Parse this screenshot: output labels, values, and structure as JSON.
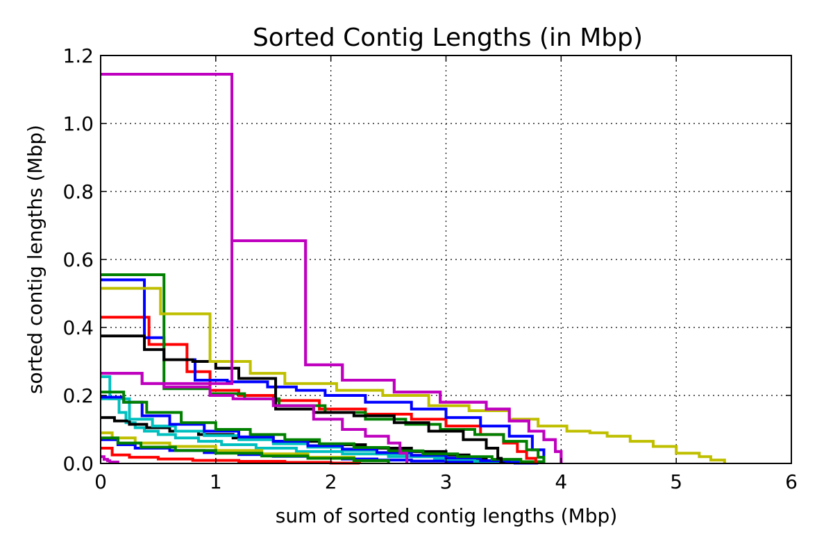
{
  "chart_data": {
    "type": "line",
    "title": "Sorted Contig Lengths (in Mbp)",
    "xlabel": "sum of sorted contig lengths (Mbp)",
    "ylabel": "sorted contig lengths (Mbp)",
    "xlim": [
      0,
      6
    ],
    "ylim": [
      0,
      1.2
    ],
    "x_ticks": [
      0,
      1,
      2,
      3,
      4,
      5,
      6
    ],
    "y_ticks": [
      0.0,
      0.2,
      0.4,
      0.6,
      0.8,
      1.0,
      1.2
    ],
    "x_tick_labels": [
      "0",
      "1",
      "2",
      "3",
      "4",
      "5",
      "6"
    ],
    "y_tick_labels": [
      "0.0",
      "0.2",
      "0.4",
      "0.6",
      "0.8",
      "1.0",
      "1.2"
    ],
    "grid": true,
    "step": "post",
    "series": [
      {
        "color": "#00bfbf",
        "x": [
          0,
          0.08,
          0.16,
          0.22,
          0.3,
          0.38,
          0.5,
          0.65,
          0.85,
          1.05,
          1.35,
          1.7,
          2.1,
          2.5,
          2.9,
          3.25,
          3.5,
          3.8
        ],
        "y": [
          0.255,
          0.19,
          0.15,
          0.12,
          0.105,
          0.095,
          0.085,
          0.075,
          0.065,
          0.055,
          0.045,
          0.035,
          0.028,
          0.02,
          0.014,
          0.008,
          0.004,
          0.0
        ]
      },
      {
        "color": "#0000ff",
        "x": [
          0,
          0.15,
          0.3,
          0.6,
          0.9,
          1.2,
          1.5,
          1.8,
          2.1,
          2.4,
          2.7,
          3.0,
          3.3,
          3.6,
          3.8
        ],
        "y": [
          0.07,
          0.055,
          0.045,
          0.038,
          0.032,
          0.026,
          0.021,
          0.017,
          0.013,
          0.01,
          0.007,
          0.005,
          0.003,
          0.001,
          0.0
        ]
      },
      {
        "color": "#ff0000",
        "x": [
          0,
          0.1,
          0.25,
          0.5,
          0.8,
          1.2,
          1.6,
          2.0,
          2.25
        ],
        "y": [
          0.045,
          0.025,
          0.018,
          0.013,
          0.009,
          0.006,
          0.003,
          0.001,
          0.0
        ]
      },
      {
        "color": "#bfbf00",
        "x": [
          0,
          0.1,
          0.3,
          0.6,
          1.0,
          1.4,
          1.8,
          2.2,
          2.5
        ],
        "y": [
          0.09,
          0.075,
          0.06,
          0.05,
          0.038,
          0.028,
          0.018,
          0.008,
          0.0
        ]
      },
      {
        "color": "#008000",
        "x": [
          0,
          0.15,
          0.35,
          0.65,
          1.0,
          1.4,
          1.8,
          2.2,
          2.5
        ],
        "y": [
          0.075,
          0.06,
          0.048,
          0.038,
          0.03,
          0.022,
          0.015,
          0.008,
          0.0
        ]
      },
      {
        "color": "#bf00bf",
        "x": [
          0,
          0.03,
          0.06,
          0.08,
          0.15
        ],
        "y": [
          0.02,
          0.012,
          0.008,
          0.004,
          0.0
        ]
      },
      {
        "color": "#000000",
        "x": [
          0,
          0.12,
          0.25,
          0.4,
          0.6,
          0.85,
          1.15,
          1.5,
          1.9,
          2.3,
          2.7,
          3.0,
          3.2,
          3.35,
          3.45,
          3.5
        ],
        "y": [
          0.135,
          0.125,
          0.115,
          0.105,
          0.095,
          0.085,
          0.075,
          0.065,
          0.055,
          0.045,
          0.035,
          0.025,
          0.015,
          0.008,
          0.003,
          0.0
        ]
      },
      {
        "color": "#00bfbf",
        "x": [
          0,
          0.25,
          0.45,
          0.65,
          0.9,
          1.2,
          1.5,
          1.8,
          2.1,
          2.4,
          2.7,
          3.0,
          3.25,
          3.45
        ],
        "y": [
          0.19,
          0.13,
          0.11,
          0.095,
          0.082,
          0.07,
          0.058,
          0.048,
          0.038,
          0.028,
          0.02,
          0.012,
          0.005,
          0.0
        ]
      },
      {
        "color": "#0000ff",
        "x": [
          0,
          0.2,
          0.36,
          0.6,
          0.9,
          1.2,
          1.5,
          1.8,
          2.1,
          2.4,
          2.7,
          3.0,
          3.3,
          3.55,
          3.7
        ],
        "y": [
          0.195,
          0.18,
          0.14,
          0.115,
          0.095,
          0.078,
          0.065,
          0.052,
          0.042,
          0.032,
          0.024,
          0.016,
          0.008,
          0.003,
          0.0
        ]
      },
      {
        "color": "#008000",
        "x": [
          0,
          0.2,
          0.4,
          0.7,
          1.0,
          1.3,
          1.6,
          1.9,
          2.2,
          2.5,
          2.8,
          3.1,
          3.4,
          3.65,
          3.85
        ],
        "y": [
          0.21,
          0.18,
          0.15,
          0.12,
          0.1,
          0.085,
          0.07,
          0.058,
          0.047,
          0.037,
          0.028,
          0.02,
          0.012,
          0.005,
          0.0
        ]
      },
      {
        "color": "#ff0000",
        "x": [
          0,
          0.42,
          0.75,
          0.95,
          1.2,
          1.5,
          1.9,
          2.3,
          2.7,
          3.0,
          3.3,
          3.5,
          3.62,
          3.7,
          3.78
        ],
        "y": [
          0.43,
          0.35,
          0.27,
          0.215,
          0.2,
          0.185,
          0.16,
          0.145,
          0.13,
          0.11,
          0.085,
          0.06,
          0.035,
          0.015,
          0.0
        ]
      },
      {
        "color": "#0000ff",
        "x": [
          0,
          0.38,
          0.55,
          0.82,
          1.1,
          1.45,
          1.7,
          1.95,
          2.3,
          2.7,
          3.0,
          3.3,
          3.55,
          3.75,
          3.85
        ],
        "y": [
          0.54,
          0.37,
          0.305,
          0.245,
          0.24,
          0.225,
          0.215,
          0.2,
          0.18,
          0.16,
          0.135,
          0.11,
          0.08,
          0.04,
          0.0
        ]
      },
      {
        "color": "#008000",
        "x": [
          0,
          0.55,
          0.95,
          1.25,
          1.55,
          1.95,
          2.3,
          2.65,
          2.95,
          3.25,
          3.5,
          3.7,
          3.8,
          3.85
        ],
        "y": [
          0.555,
          0.22,
          0.205,
          0.19,
          0.17,
          0.15,
          0.13,
          0.115,
          0.1,
          0.085,
          0.065,
          0.04,
          0.018,
          0.0
        ]
      },
      {
        "color": "#000000",
        "x": [
          0,
          0.38,
          0.55,
          0.8,
          1.0,
          1.2,
          1.52,
          1.85,
          2.2,
          2.55,
          2.85,
          3.15,
          3.35,
          3.45,
          3.48
        ],
        "y": [
          0.375,
          0.335,
          0.305,
          0.3,
          0.28,
          0.25,
          0.16,
          0.15,
          0.14,
          0.12,
          0.095,
          0.07,
          0.045,
          0.015,
          0.0
        ]
      },
      {
        "color": "#bfbf00",
        "x": [
          0,
          0.52,
          0.95,
          1.3,
          1.6,
          2.05,
          2.45,
          2.85,
          3.2,
          3.55,
          3.8,
          4.05,
          4.25,
          4.4,
          4.6,
          4.8,
          5.0,
          5.2,
          5.3,
          5.42
        ],
        "y": [
          0.515,
          0.44,
          0.3,
          0.265,
          0.235,
          0.215,
          0.2,
          0.17,
          0.155,
          0.13,
          0.11,
          0.095,
          0.09,
          0.08,
          0.065,
          0.05,
          0.03,
          0.02,
          0.01,
          0.0
        ]
      },
      {
        "color": "#bf00bf",
        "x": [
          0,
          0.36,
          1.14,
          1.78,
          2.1,
          2.55,
          2.95,
          3.35,
          3.55,
          3.72,
          3.85,
          3.95,
          4.0
        ],
        "y": [
          0.265,
          0.235,
          0.655,
          0.29,
          0.245,
          0.21,
          0.18,
          0.16,
          0.125,
          0.095,
          0.07,
          0.035,
          0.0
        ]
      },
      {
        "color": "#bf00bf",
        "x": [
          0,
          0.36,
          0.55,
          0.95,
          1.15,
          1.5,
          1.85,
          2.1,
          2.3,
          2.5,
          2.6,
          2.66
        ],
        "y": [
          0.265,
          0.235,
          0.225,
          0.2,
          0.19,
          0.17,
          0.13,
          0.1,
          0.08,
          0.06,
          0.03,
          0.0
        ]
      },
      {
        "color": "#bf00bf",
        "x": [
          0,
          1.14,
          1.78,
          2.1,
          2.55,
          2.95,
          3.35,
          3.55,
          3.72,
          3.85,
          3.95,
          4.0
        ],
        "y": [
          1.145,
          0.655,
          0.29,
          0.245,
          0.21,
          0.18,
          0.16,
          0.125,
          0.095,
          0.07,
          0.035,
          0.0
        ]
      }
    ]
  }
}
